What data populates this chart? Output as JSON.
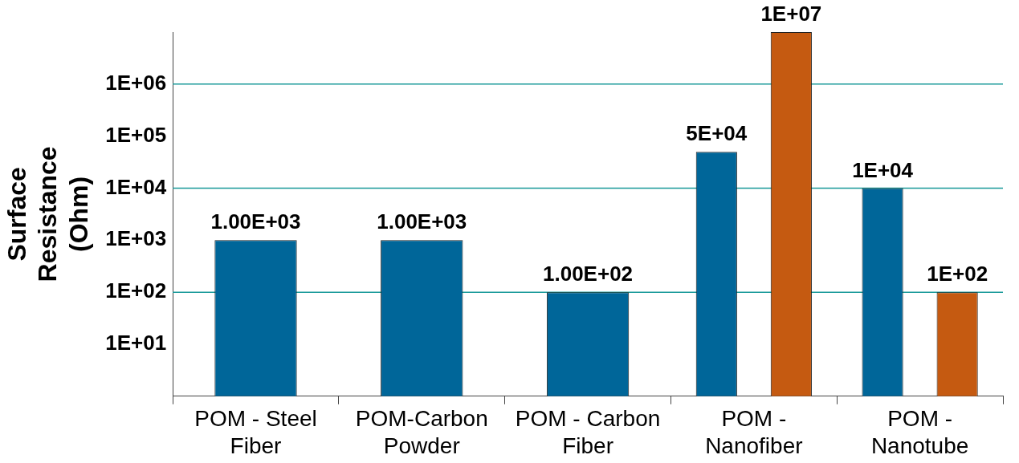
{
  "chart_data": {
    "type": "bar",
    "ylabel": "Surface Resistance (Ohm)",
    "categories": [
      "POM - Steel Fiber",
      "POM-Carbon Powder",
      "POM - Carbon Fiber",
      "POM - Nanofiber",
      "POM - Nanotube"
    ],
    "series": [
      {
        "color": "#006699",
        "values": [
          1000,
          1000,
          100,
          50000,
          10000
        ],
        "value_labels": [
          "1.00E+03",
          "1.00E+03",
          "1.00E+02",
          "5E+04",
          "1E+04"
        ]
      },
      {
        "color": "#c55a11",
        "values": [
          null,
          null,
          null,
          10000000,
          100
        ],
        "value_labels": [
          null,
          null,
          null,
          "1E+07",
          "1E+02"
        ]
      }
    ],
    "log": "y",
    "ylim": [
      1,
      10000000
    ],
    "yticks": [
      {
        "value": 10,
        "label": "1E+01"
      },
      {
        "value": 100,
        "label": "1E+02"
      },
      {
        "value": 1000,
        "label": "1E+03"
      },
      {
        "value": 10000,
        "label": "1E+04"
      },
      {
        "value": 100000,
        "label": "1E+05"
      },
      {
        "value": 1000000,
        "label": "1E+06"
      }
    ],
    "ref_lines": [
      {
        "axis": "y",
        "value": 100,
        "color": "#1a9a9a"
      },
      {
        "axis": "y",
        "value": 10000,
        "color": "#1a9a9a"
      },
      {
        "axis": "y",
        "value": 1000000,
        "color": "#1a9a9a"
      }
    ],
    "grid": false,
    "legend": false
  }
}
